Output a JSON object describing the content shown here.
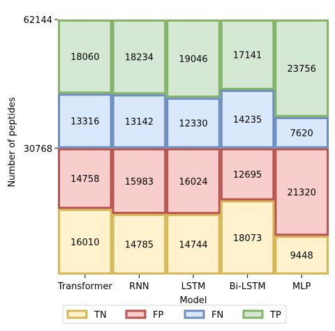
{
  "chart_data": {
    "type": "bar",
    "stacked": true,
    "categories": [
      "Transformer",
      "RNN",
      "LSTM",
      "Bi-LSTM",
      "MLP"
    ],
    "xlabel": "Model",
    "ylabel": "Number of peptides",
    "y_ticks": [
      30768,
      62144
    ],
    "ylim": [
      0,
      62144
    ],
    "series": [
      {
        "name": "TN",
        "values": [
          16010,
          14785,
          14744,
          18073,
          9448
        ],
        "fill": "#fff2cc",
        "stroke": "#d6b656"
      },
      {
        "name": "FP",
        "values": [
          14758,
          15983,
          16024,
          12695,
          21320
        ],
        "fill": "#f8cecc",
        "stroke": "#b85450"
      },
      {
        "name": "FN",
        "values": [
          13316,
          13142,
          12330,
          14235,
          7620
        ],
        "fill": "#dae8fc",
        "stroke": "#6c8ebf"
      },
      {
        "name": "TP",
        "values": [
          18060,
          18234,
          19046,
          17141,
          23756
        ],
        "fill": "#d5e8d4",
        "stroke": "#82b366"
      }
    ],
    "legend_position": "bottom-center",
    "grid": false
  }
}
